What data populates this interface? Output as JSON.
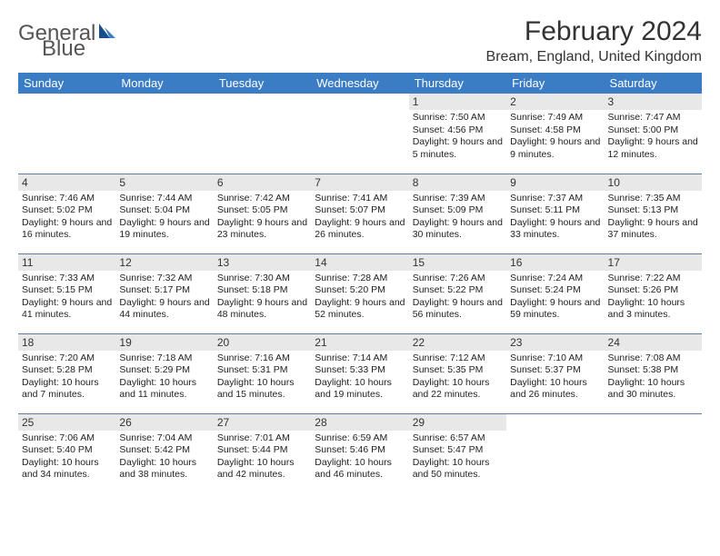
{
  "logo": {
    "word1": "General",
    "word2": "Blue"
  },
  "title": "February 2024",
  "location": "Bream, England, United Kingdom",
  "day_headers": [
    "Sunday",
    "Monday",
    "Tuesday",
    "Wednesday",
    "Thursday",
    "Friday",
    "Saturday"
  ],
  "colors": {
    "header_bg": "#3b7dc4",
    "header_fg": "#ffffff",
    "daynum_bg": "#e8e8e8",
    "cell_border": "#5b7fa8",
    "logo_gray": "#555555",
    "logo_blue": "#3b7dc4"
  },
  "weeks": [
    [
      null,
      null,
      null,
      null,
      {
        "num": "1",
        "sunrise": "7:50 AM",
        "sunset": "4:56 PM",
        "daylight": "9 hours and 5 minutes."
      },
      {
        "num": "2",
        "sunrise": "7:49 AM",
        "sunset": "4:58 PM",
        "daylight": "9 hours and 9 minutes."
      },
      {
        "num": "3",
        "sunrise": "7:47 AM",
        "sunset": "5:00 PM",
        "daylight": "9 hours and 12 minutes."
      }
    ],
    [
      {
        "num": "4",
        "sunrise": "7:46 AM",
        "sunset": "5:02 PM",
        "daylight": "9 hours and 16 minutes."
      },
      {
        "num": "5",
        "sunrise": "7:44 AM",
        "sunset": "5:04 PM",
        "daylight": "9 hours and 19 minutes."
      },
      {
        "num": "6",
        "sunrise": "7:42 AM",
        "sunset": "5:05 PM",
        "daylight": "9 hours and 23 minutes."
      },
      {
        "num": "7",
        "sunrise": "7:41 AM",
        "sunset": "5:07 PM",
        "daylight": "9 hours and 26 minutes."
      },
      {
        "num": "8",
        "sunrise": "7:39 AM",
        "sunset": "5:09 PM",
        "daylight": "9 hours and 30 minutes."
      },
      {
        "num": "9",
        "sunrise": "7:37 AM",
        "sunset": "5:11 PM",
        "daylight": "9 hours and 33 minutes."
      },
      {
        "num": "10",
        "sunrise": "7:35 AM",
        "sunset": "5:13 PM",
        "daylight": "9 hours and 37 minutes."
      }
    ],
    [
      {
        "num": "11",
        "sunrise": "7:33 AM",
        "sunset": "5:15 PM",
        "daylight": "9 hours and 41 minutes."
      },
      {
        "num": "12",
        "sunrise": "7:32 AM",
        "sunset": "5:17 PM",
        "daylight": "9 hours and 44 minutes."
      },
      {
        "num": "13",
        "sunrise": "7:30 AM",
        "sunset": "5:18 PM",
        "daylight": "9 hours and 48 minutes."
      },
      {
        "num": "14",
        "sunrise": "7:28 AM",
        "sunset": "5:20 PM",
        "daylight": "9 hours and 52 minutes."
      },
      {
        "num": "15",
        "sunrise": "7:26 AM",
        "sunset": "5:22 PM",
        "daylight": "9 hours and 56 minutes."
      },
      {
        "num": "16",
        "sunrise": "7:24 AM",
        "sunset": "5:24 PM",
        "daylight": "9 hours and 59 minutes."
      },
      {
        "num": "17",
        "sunrise": "7:22 AM",
        "sunset": "5:26 PM",
        "daylight": "10 hours and 3 minutes."
      }
    ],
    [
      {
        "num": "18",
        "sunrise": "7:20 AM",
        "sunset": "5:28 PM",
        "daylight": "10 hours and 7 minutes."
      },
      {
        "num": "19",
        "sunrise": "7:18 AM",
        "sunset": "5:29 PM",
        "daylight": "10 hours and 11 minutes."
      },
      {
        "num": "20",
        "sunrise": "7:16 AM",
        "sunset": "5:31 PM",
        "daylight": "10 hours and 15 minutes."
      },
      {
        "num": "21",
        "sunrise": "7:14 AM",
        "sunset": "5:33 PM",
        "daylight": "10 hours and 19 minutes."
      },
      {
        "num": "22",
        "sunrise": "7:12 AM",
        "sunset": "5:35 PM",
        "daylight": "10 hours and 22 minutes."
      },
      {
        "num": "23",
        "sunrise": "7:10 AM",
        "sunset": "5:37 PM",
        "daylight": "10 hours and 26 minutes."
      },
      {
        "num": "24",
        "sunrise": "7:08 AM",
        "sunset": "5:38 PM",
        "daylight": "10 hours and 30 minutes."
      }
    ],
    [
      {
        "num": "25",
        "sunrise": "7:06 AM",
        "sunset": "5:40 PM",
        "daylight": "10 hours and 34 minutes."
      },
      {
        "num": "26",
        "sunrise": "7:04 AM",
        "sunset": "5:42 PM",
        "daylight": "10 hours and 38 minutes."
      },
      {
        "num": "27",
        "sunrise": "7:01 AM",
        "sunset": "5:44 PM",
        "daylight": "10 hours and 42 minutes."
      },
      {
        "num": "28",
        "sunrise": "6:59 AM",
        "sunset": "5:46 PM",
        "daylight": "10 hours and 46 minutes."
      },
      {
        "num": "29",
        "sunrise": "6:57 AM",
        "sunset": "5:47 PM",
        "daylight": "10 hours and 50 minutes."
      },
      null,
      null
    ]
  ],
  "labels": {
    "sunrise": "Sunrise:",
    "sunset": "Sunset:",
    "daylight": "Daylight:"
  }
}
